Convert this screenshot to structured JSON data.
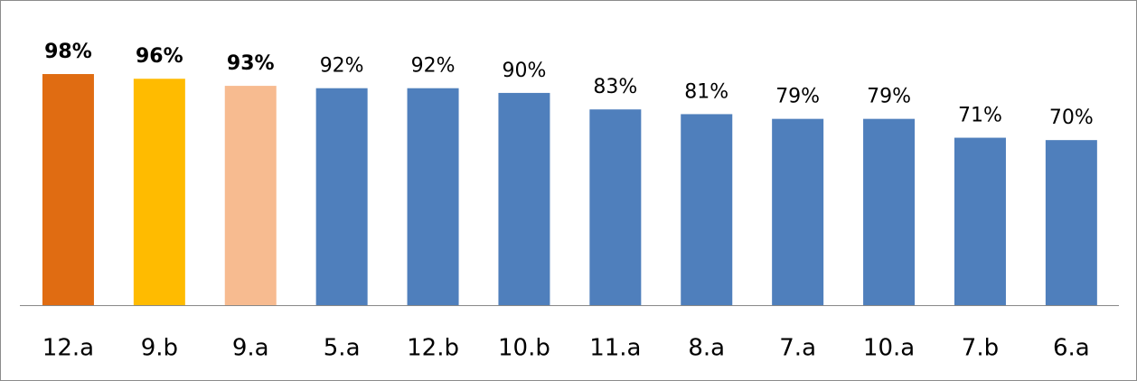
{
  "chart_data": {
    "type": "bar",
    "categories": [
      "12.a",
      "9.b",
      "9.a",
      "5.a",
      "12.b",
      "10.b",
      "11.a",
      "8.a",
      "7.a",
      "10.a",
      "7.b",
      "6.a"
    ],
    "values": [
      98,
      96,
      93,
      92,
      92,
      90,
      83,
      81,
      79,
      79,
      71,
      70
    ],
    "value_labels": [
      "98%",
      "96%",
      "93%",
      "92%",
      "92%",
      "90%",
      "83%",
      "81%",
      "79%",
      "79%",
      "71%",
      "70%"
    ],
    "color": "#4f7fbc",
    "colors": [
      "#e06c12",
      "#ffbb00",
      "#f7bb90",
      "#4f7fbc",
      "#4f7fbc",
      "#4f7fbc",
      "#4f7fbc",
      "#4f7fbc",
      "#4f7fbc",
      "#4f7fbc",
      "#4f7fbc",
      "#4f7fbc"
    ]
  }
}
